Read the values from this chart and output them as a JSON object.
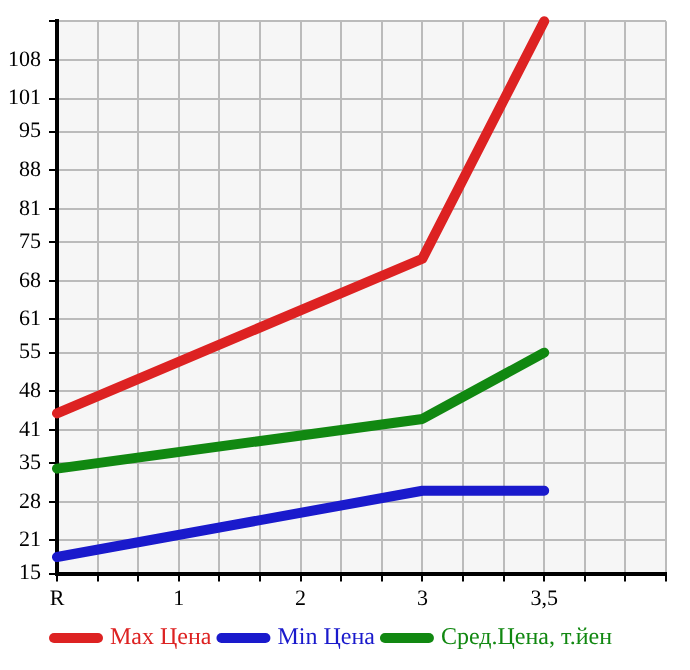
{
  "chart_data": {
    "type": "line",
    "categories": [
      "R",
      "1",
      "2",
      "3",
      "3,5"
    ],
    "series": [
      {
        "name": "Max Цена",
        "color": "#dd2222",
        "values": [
          44,
          null,
          null,
          72,
          115
        ]
      },
      {
        "name": "Min Цена",
        "color": "#1a1acc",
        "values": [
          18,
          null,
          null,
          30,
          30
        ]
      },
      {
        "name": "Сред.Цена, т.йен",
        "color": "#118811",
        "values": [
          34,
          null,
          null,
          43,
          55
        ]
      }
    ],
    "ylim": [
      15,
      115
    ],
    "yticks": [
      15,
      21,
      28,
      35,
      41,
      48,
      55,
      61,
      68,
      75,
      81,
      88,
      95,
      101,
      108,
      {
        "value": 115,
        "label": null
      }
    ],
    "grid": true,
    "legend": "bottom",
    "marker": "none",
    "line_style": "solid"
  }
}
